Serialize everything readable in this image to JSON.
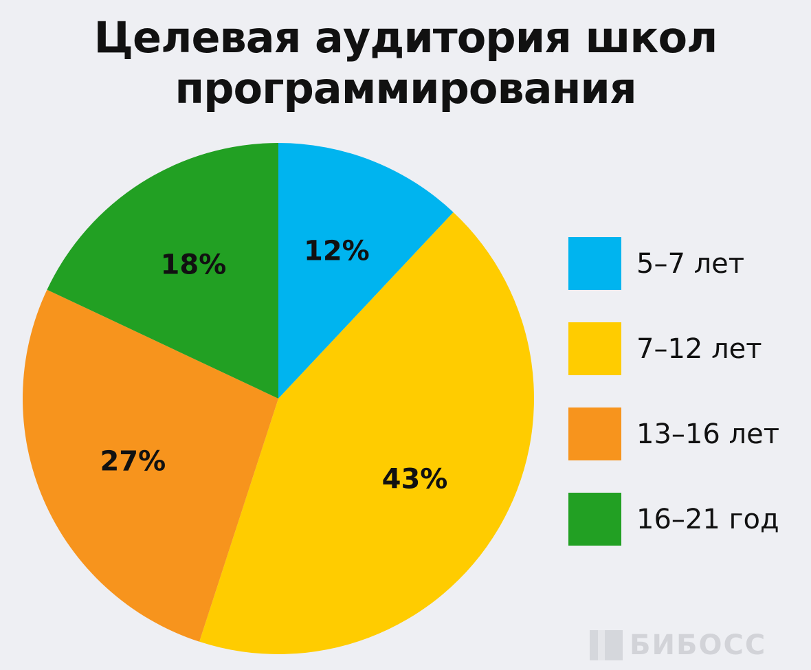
{
  "chart_data": {
    "type": "pie",
    "title_lines": [
      "Целевая аудитория школ",
      "программирования"
    ],
    "categories": [
      "5–7 лет",
      "7–12 лет",
      "13–16 лет",
      "16–21 год"
    ],
    "values": [
      12,
      43,
      27,
      18
    ],
    "value_labels": [
      "12%",
      "43%",
      "27%",
      "18%"
    ],
    "colors": [
      "#00b4ef",
      "#ffcc00",
      "#f7941d",
      "#22a023"
    ],
    "start_angle": "top",
    "direction": "clockwise",
    "legend_position": "right"
  },
  "watermark": {
    "text": "БИБОСС"
  }
}
